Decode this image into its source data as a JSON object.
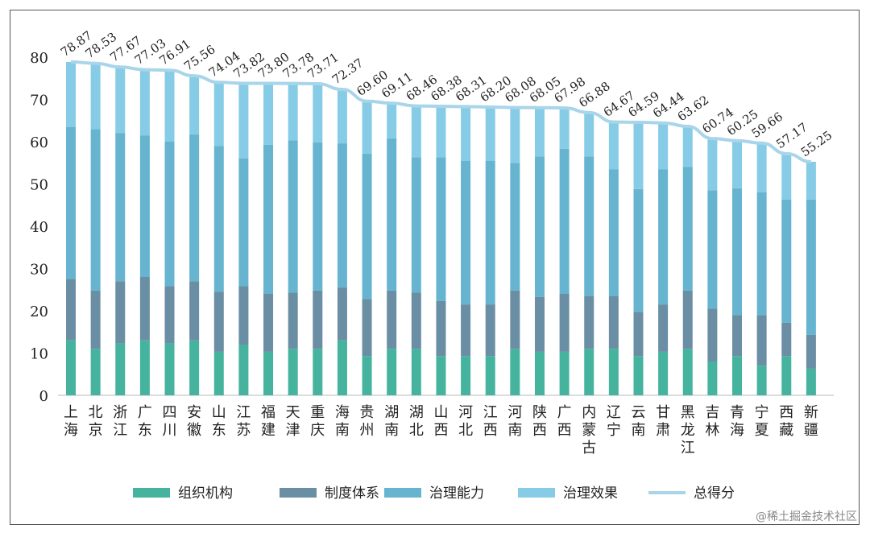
{
  "chart_data": {
    "type": "bar",
    "stacked": true,
    "categories": [
      "上海",
      "北京",
      "浙江",
      "广东",
      "四川",
      "安徽",
      "山东",
      "江苏",
      "福建",
      "天津",
      "重庆",
      "海南",
      "贵州",
      "湖南",
      "湖北",
      "山西",
      "河北",
      "江西",
      "河南",
      "陕西",
      "广西",
      "内蒙古",
      "辽宁",
      "云南",
      "甘肃",
      "黑龙江",
      "吉林",
      "青海",
      "宁夏",
      "西藏",
      "新疆"
    ],
    "series": [
      {
        "name": "组织机构",
        "color": "#45b39d",
        "values": [
          13,
          11,
          12.3,
          13,
          12.3,
          13,
          10.3,
          12,
          10.3,
          11,
          11,
          13,
          9.3,
          11,
          11,
          9.3,
          9.3,
          9.3,
          11,
          10.3,
          10.3,
          11,
          11,
          9.3,
          10.3,
          11,
          8,
          9.3,
          7,
          9.3,
          6.3
        ]
      },
      {
        "name": "制度体系",
        "color": "#6a8ea3",
        "values": [
          14.5,
          13.8,
          14.7,
          15,
          13.5,
          14,
          14.2,
          13.8,
          13.7,
          13.3,
          13.8,
          12.5,
          13.5,
          13.8,
          13.3,
          13,
          12.2,
          12.2,
          13.8,
          13,
          13.7,
          12.5,
          12.5,
          10.4,
          11.2,
          13.8,
          12.5,
          9.7,
          12,
          7.9,
          8
        ]
      },
      {
        "name": "治理能力",
        "color": "#66b4cf",
        "values": [
          36,
          38.2,
          35,
          33.5,
          34.2,
          34.7,
          34.5,
          30.2,
          35.3,
          36,
          35,
          34.1,
          34.4,
          36,
          32,
          34,
          34,
          34,
          30.2,
          33.2,
          34.3,
          33,
          30,
          29.1,
          32,
          29.2,
          28,
          30,
          29,
          29.1,
          32
        ]
      },
      {
        "name": "治理效果",
        "color": "#86cce6",
        "values": [
          15.37,
          15.53,
          15.67,
          15.53,
          16.91,
          13.86,
          15.04,
          17.82,
          14.5,
          13.48,
          13.91,
          12.77,
          12.4,
          8.31,
          12.16,
          12.08,
          12.81,
          12.7,
          13.08,
          11.55,
          9.68,
          10.38,
          11.17,
          15.79,
          10.94,
          9.62,
          12.24,
          11.25,
          11.66,
          10.87,
          8.95
        ]
      }
    ],
    "line": {
      "name": "总得分",
      "color": "#a9d5ea",
      "values": [
        78.87,
        78.53,
        77.67,
        77.03,
        76.91,
        75.56,
        74.04,
        73.82,
        73.8,
        73.78,
        73.71,
        72.37,
        69.6,
        69.11,
        68.46,
        68.38,
        68.31,
        68.2,
        68.08,
        68.05,
        67.98,
        66.88,
        64.67,
        64.59,
        64.44,
        63.62,
        60.74,
        60.25,
        59.66,
        57.17,
        55.25
      ],
      "labels": [
        "78.87",
        "78.53",
        "77.67",
        "77.03",
        "76.91",
        "75.56",
        "74.04",
        "73.82",
        "73.80",
        "73.78",
        "73.71",
        "72.37",
        "69.60",
        "69.11",
        "68.46",
        "68.38",
        "68.31",
        "68.20",
        "68.08",
        "68.05",
        "67.98",
        "66.88",
        "64.67",
        "64.59",
        "64.44",
        "63.62",
        "60.74",
        "60.25",
        "59.66",
        "57.17",
        "55.25"
      ]
    },
    "yticks": [
      "0",
      "10",
      "20",
      "30",
      "40",
      "50",
      "60",
      "70",
      "80"
    ],
    "ylim": [
      0,
      80
    ],
    "grid": false,
    "legend": "bottom"
  },
  "watermark": "@稀土掘金技术社区"
}
